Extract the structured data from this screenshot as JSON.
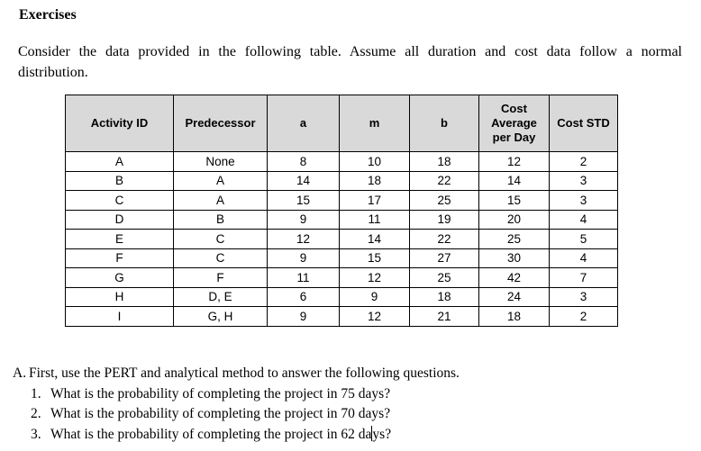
{
  "page": {
    "heading": "Exercises",
    "intro": "Consider the data provided in the following table. Assume all duration and cost data follow a normal distribution."
  },
  "table": {
    "columns": [
      "Activity ID",
      "Predecessor",
      "a",
      "m",
      "b",
      "Cost Average per Day",
      "Cost STD"
    ],
    "rows": [
      [
        "A",
        "None",
        "8",
        "10",
        "18",
        "12",
        "2"
      ],
      [
        "B",
        "A",
        "14",
        "18",
        "22",
        "14",
        "3"
      ],
      [
        "C",
        "A",
        "15",
        "17",
        "25",
        "15",
        "3"
      ],
      [
        "D",
        "B",
        "9",
        "11",
        "19",
        "20",
        "4"
      ],
      [
        "E",
        "C",
        "12",
        "14",
        "22",
        "25",
        "5"
      ],
      [
        "F",
        "C",
        "9",
        "15",
        "27",
        "30",
        "4"
      ],
      [
        "G",
        "F",
        "11",
        "12",
        "25",
        "42",
        "7"
      ],
      [
        "H",
        "D, E",
        "6",
        "9",
        "18",
        "24",
        "3"
      ],
      [
        "I",
        "G, H",
        "9",
        "12",
        "21",
        "18",
        "2"
      ]
    ]
  },
  "section_a": {
    "label": "A.",
    "text": "First, use the PERT and analytical method to answer the following questions.",
    "questions": [
      {
        "number": "1.",
        "text": "What is the probability of completing the project in 75 days?"
      },
      {
        "number": "2.",
        "text": "What is the probability of completing the project in 70 days?"
      },
      {
        "number": "3.",
        "text_before_caret": "What is the probability of completing the project in 62 da",
        "text_after_caret": "ys?"
      }
    ]
  },
  "colors": {
    "table_header_bg": "#d9d9d9",
    "table_border": "#000000",
    "text": "#000000",
    "page_bg": "#ffffff"
  }
}
